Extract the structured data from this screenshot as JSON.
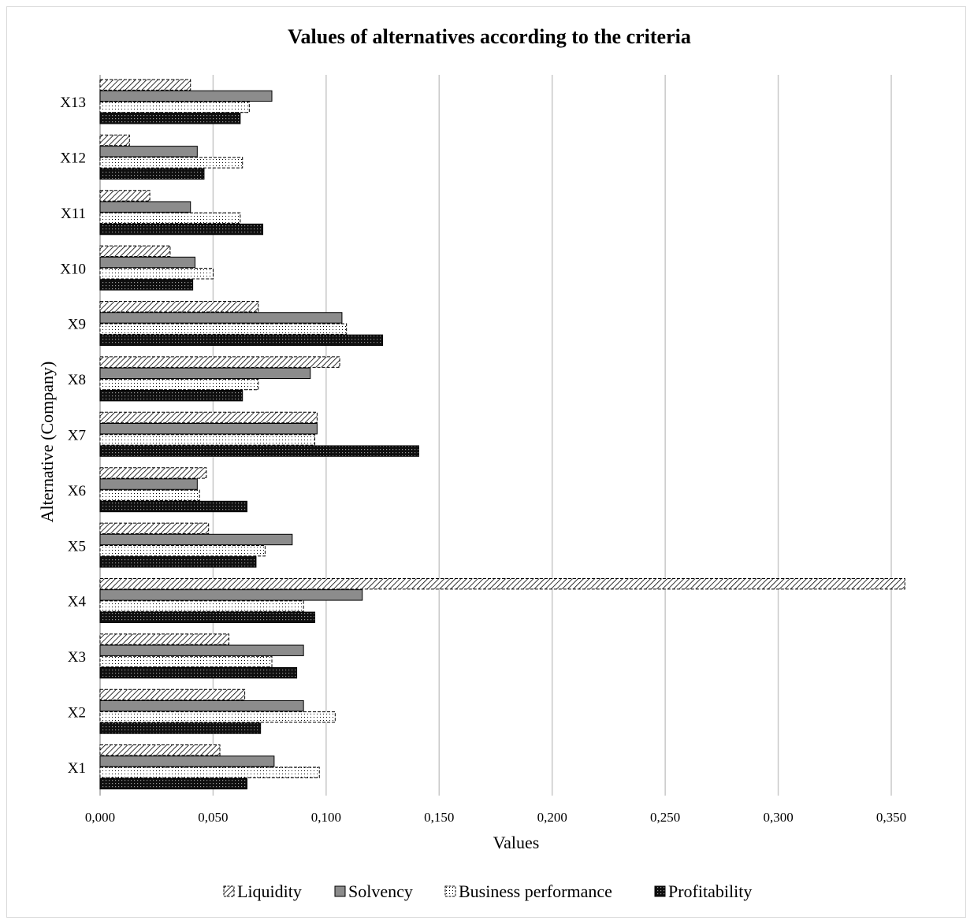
{
  "chart_data": {
    "type": "bar",
    "orientation": "horizontal",
    "title": "Values of alternatives according to the criteria",
    "xlabel": "Values",
    "ylabel": "Alternative (Company)",
    "xlim": [
      0,
      0.35
    ],
    "xticks": [
      "0,000",
      "0,050",
      "0,100",
      "0,150",
      "0,200",
      "0,250",
      "0,300",
      "0,350"
    ],
    "categories": [
      "X1",
      "X2",
      "X3",
      "X4",
      "X5",
      "X6",
      "X7",
      "X8",
      "X9",
      "X10",
      "X11",
      "X12",
      "X13"
    ],
    "series": [
      {
        "name": "Liquidity",
        "pattern": "diagonal-hatch",
        "values": [
          0.053,
          0.064,
          0.057,
          0.356,
          0.048,
          0.047,
          0.096,
          0.106,
          0.07,
          0.031,
          0.022,
          0.013,
          0.04
        ]
      },
      {
        "name": "Solvency",
        "pattern": "solid-gray",
        "values": [
          0.077,
          0.09,
          0.09,
          0.116,
          0.085,
          0.043,
          0.096,
          0.093,
          0.107,
          0.042,
          0.04,
          0.043,
          0.076
        ]
      },
      {
        "name": "Business performance",
        "pattern": "light-dots",
        "values": [
          0.097,
          0.104,
          0.076,
          0.09,
          0.073,
          0.044,
          0.095,
          0.07,
          0.109,
          0.05,
          0.062,
          0.063,
          0.066
        ]
      },
      {
        "name": "Profitability",
        "pattern": "dark-dots",
        "values": [
          0.065,
          0.071,
          0.087,
          0.095,
          0.069,
          0.065,
          0.141,
          0.063,
          0.125,
          0.041,
          0.072,
          0.046,
          0.062
        ]
      }
    ],
    "grid": true,
    "legend_position": "bottom",
    "colors": {
      "gridline": "#c8c8c8",
      "bar_outline": "#000000",
      "solvency_fill": "#8c8c8c"
    }
  }
}
